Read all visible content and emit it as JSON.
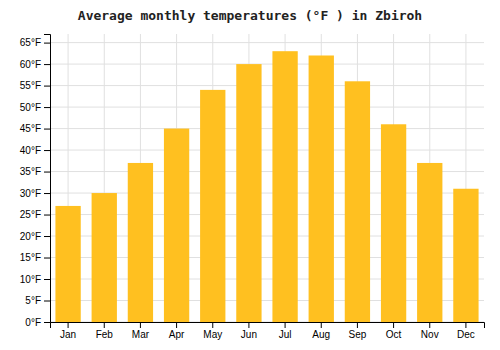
{
  "chart_data": {
    "type": "bar",
    "title": "Average monthly temperatures (°F ) in Zbiroh",
    "categories": [
      "Jan",
      "Feb",
      "Mar",
      "Apr",
      "May",
      "Jun",
      "Jul",
      "Aug",
      "Sep",
      "Oct",
      "Nov",
      "Dec"
    ],
    "values": [
      27,
      30,
      37,
      45,
      54,
      60,
      63,
      62,
      56,
      46,
      37,
      31
    ],
    "color": "#FFC020",
    "ylim": [
      0,
      67
    ],
    "yticks": [
      {
        "value": 0,
        "label": "0°F"
      },
      {
        "value": 5,
        "label": "5°F"
      },
      {
        "value": 10,
        "label": "10°F"
      },
      {
        "value": 15,
        "label": "15°F"
      },
      {
        "value": 20,
        "label": "20°F"
      },
      {
        "value": 25,
        "label": "25°F"
      },
      {
        "value": 30,
        "label": "30°F"
      },
      {
        "value": 35,
        "label": "35°F"
      },
      {
        "value": 40,
        "label": "40°F"
      },
      {
        "value": 45,
        "label": "45°F"
      },
      {
        "value": 50,
        "label": "50°F"
      },
      {
        "value": 55,
        "label": "55°F"
      },
      {
        "value": 60,
        "label": "60°F"
      },
      {
        "value": 65,
        "label": "65°F"
      }
    ],
    "grid": true
  }
}
